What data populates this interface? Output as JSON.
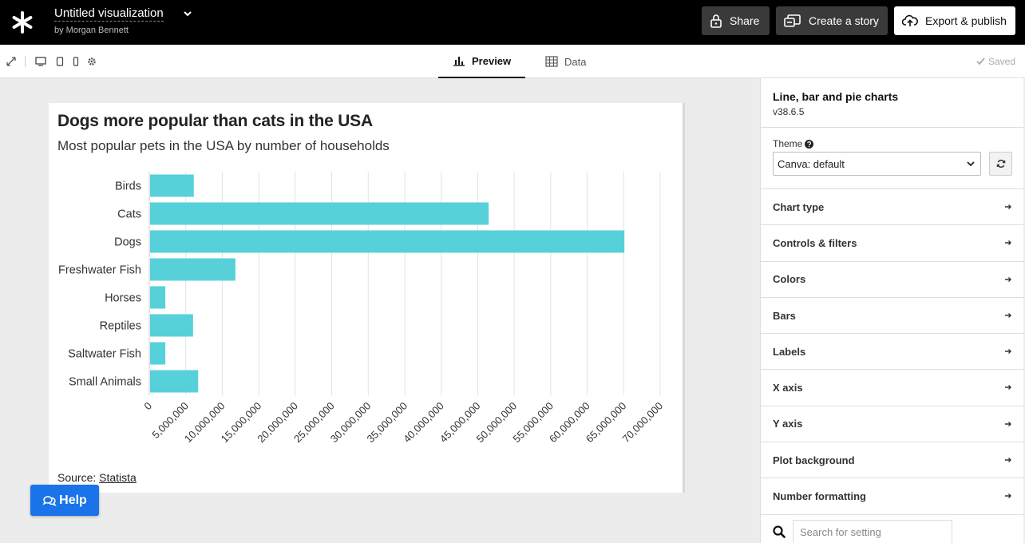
{
  "header": {
    "title": "Untitled visualization",
    "byline": "by Morgan Bennett",
    "share_label": "Share",
    "story_label": "Create a story",
    "export_label": "Export & publish"
  },
  "toolbar": {
    "tabs": [
      {
        "label": "Preview",
        "active": true
      },
      {
        "label": "Data",
        "active": false
      }
    ],
    "saved_label": "Saved"
  },
  "chart": {
    "title": "Dogs more popular than cats in the USA",
    "subtitle": "Most popular pets in the USA by number of households",
    "source_prefix": "Source: ",
    "source_link": "Statista"
  },
  "chart_data": {
    "type": "bar",
    "orientation": "horizontal",
    "title": "Dogs more popular than cats in the USA",
    "subtitle": "Most popular pets in the USA by number of households",
    "categories": [
      "Birds",
      "Cats",
      "Dogs",
      "Freshwater Fish",
      "Horses",
      "Reptiles",
      "Saltwater Fish",
      "Small Animals"
    ],
    "values": [
      6100000,
      46500000,
      65100000,
      11800000,
      2200000,
      6000000,
      2200000,
      6700000
    ],
    "xlim": [
      0,
      70000000
    ],
    "xticks": [
      0,
      5000000,
      10000000,
      15000000,
      20000000,
      25000000,
      30000000,
      35000000,
      40000000,
      45000000,
      50000000,
      55000000,
      60000000,
      65000000,
      70000000
    ],
    "xtick_labels": [
      "0",
      "5,000,000",
      "10,000,000",
      "15,000,000",
      "20,000,000",
      "25,000,000",
      "30,000,000",
      "35,000,000",
      "40,000,000",
      "45,000,000",
      "50,000,000",
      "55,000,000",
      "60,000,000",
      "65,000,000",
      "70,000,000"
    ],
    "grid": true,
    "bar_color": "#57d1d9"
  },
  "help": {
    "label": "Help"
  },
  "panel": {
    "name": "Line, bar and pie charts",
    "version": "v38.6.5",
    "theme_label": "Theme",
    "theme_value": "Canva: default",
    "sections": [
      {
        "label": "Chart type"
      },
      {
        "label": "Controls & filters"
      },
      {
        "label": "Colors"
      },
      {
        "label": "Bars"
      },
      {
        "label": "Labels"
      },
      {
        "label": "X axis"
      },
      {
        "label": "Y axis"
      },
      {
        "label": "Plot background"
      },
      {
        "label": "Number formatting"
      }
    ],
    "search_placeholder": "Search for setting"
  }
}
